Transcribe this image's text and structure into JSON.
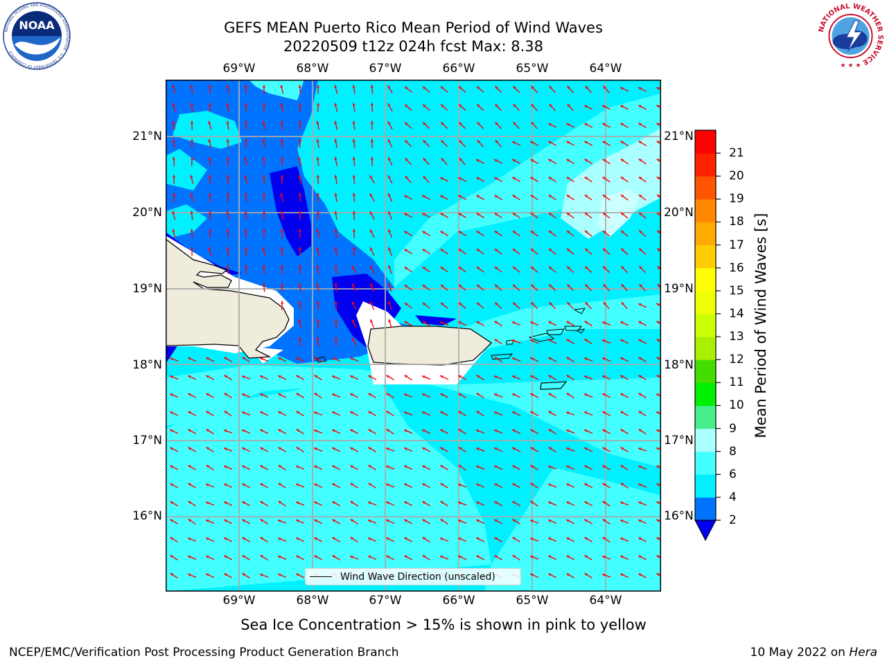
{
  "header": {
    "title_line1": "GEFS MEAN Puerto Rico Mean Period of Wind Waves",
    "title_line2": "20220509 t12z 024h fcst   Max: 8.38"
  },
  "map": {
    "longitude_labels": [
      "69°W",
      "68°W",
      "67°W",
      "66°W",
      "65°W",
      "64°W"
    ],
    "latitude_labels": [
      "21°N",
      "20°N",
      "19°N",
      "18°N",
      "17°N",
      "16°N"
    ],
    "legend_label": "Wind Wave Direction (unscaled)",
    "arrow_color": "#ff0000",
    "land_color": "#efecdc",
    "grid_color": "#aaaaaa"
  },
  "colorbar": {
    "label": "Mean Period of Wind Waves [s]",
    "ticks": [
      "2",
      "4",
      "6",
      "8",
      "9",
      "10",
      "11",
      "12",
      "13",
      "14",
      "15",
      "16",
      "17",
      "18",
      "19",
      "20",
      "21"
    ],
    "under_color": "#0000ee",
    "colors": [
      "#0073ff",
      "#00f0ff",
      "#44ffff",
      "#aaffff",
      "#44ee88",
      "#00ee00",
      "#44dd00",
      "#aaee00",
      "#ccff00",
      "#eeff00",
      "#ffff00",
      "#ffcc00",
      "#ffaa00",
      "#ff8800",
      "#ff5500",
      "#ff2200",
      "#ff0000"
    ]
  },
  "footnote": "Sea Ice Concentration > 15% is shown in pink to yellow",
  "credit_left": "NCEP/EMC/Verification Post Processing Product Generation Branch",
  "credit_right_date": "10 May 2022 on",
  "credit_right_host": "Hera",
  "logos": {
    "noaa_text": "NOAA",
    "noaa_ring_text": "NATIONAL OCEANIC AND ATMOSPHERIC ADMINISTRATION · U.S. DEPARTMENT OF COMMERCE",
    "nws_ring_text": "NATIONAL WEATHER SERVICE"
  }
}
